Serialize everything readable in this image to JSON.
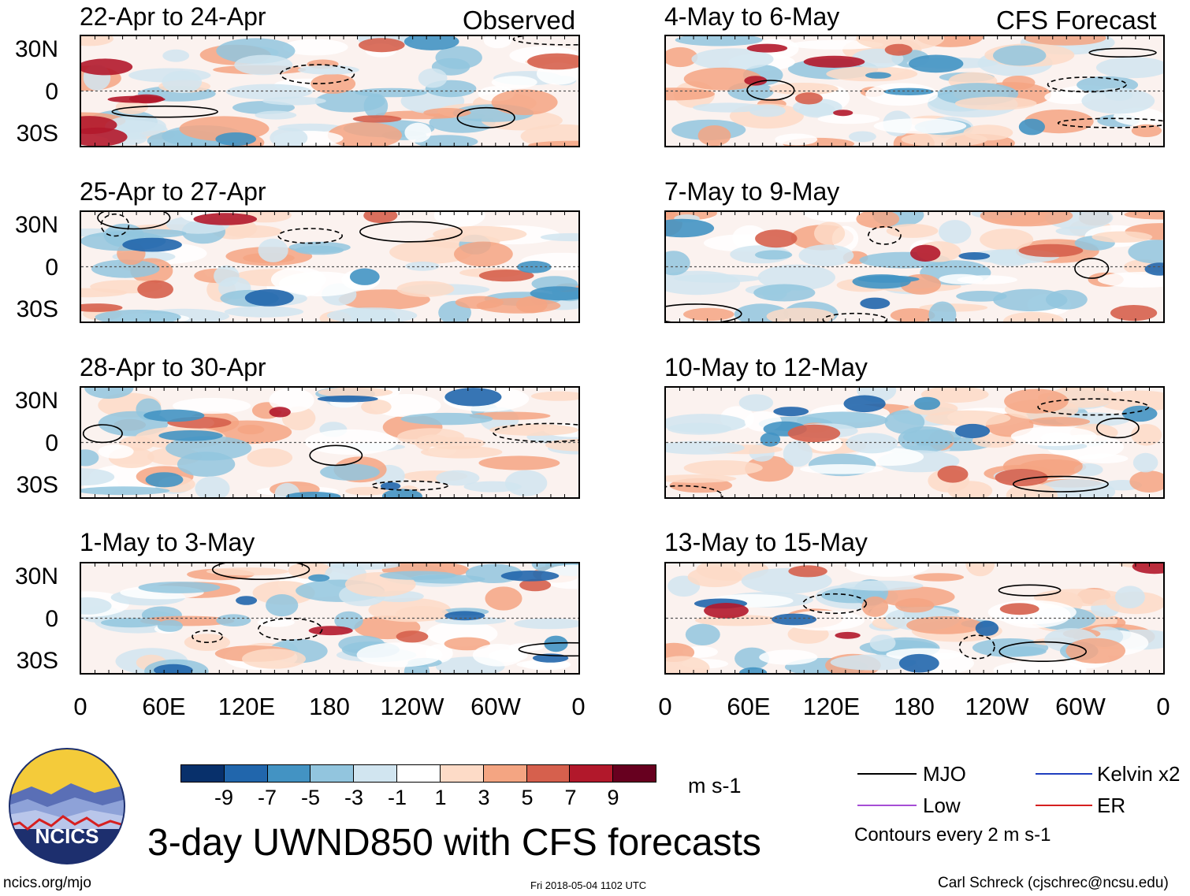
{
  "header": {
    "observed_label": "Observed",
    "forecast_label": "CFS Forecast"
  },
  "panels": {
    "observed": [
      {
        "title": "22-Apr to 24-Apr"
      },
      {
        "title": "25-Apr to 27-Apr"
      },
      {
        "title": "28-Apr to 30-Apr"
      },
      {
        "title": "1-May to 3-May"
      }
    ],
    "forecast": [
      {
        "title": "4-May to 6-May"
      },
      {
        "title": "7-May to 9-May"
      },
      {
        "title": "10-May to 12-May"
      },
      {
        "title": "13-May to 15-May"
      }
    ]
  },
  "axes": {
    "lat_labels": [
      "30N",
      "0",
      "30S"
    ],
    "lon_labels": [
      "0",
      "60E",
      "120E",
      "180",
      "120W",
      "60W",
      "0"
    ]
  },
  "colorbar": {
    "unit": "m s-1",
    "tick_labels": [
      "-9",
      "-7",
      "-5",
      "-3",
      "-1",
      "1",
      "3",
      "5",
      "7",
      "9"
    ],
    "colors": [
      "#08306b",
      "#2166ac",
      "#4393c3",
      "#92c5de",
      "#d1e5f0",
      "#ffffff",
      "#fddbc7",
      "#f4a582",
      "#d6604d",
      "#b2182b",
      "#67001f"
    ]
  },
  "legend": {
    "items": [
      {
        "label": "MJO",
        "color": "#000000"
      },
      {
        "label": "Kelvin x2",
        "color": "#1f3fbf"
      },
      {
        "label": "Low",
        "color": "#a64dd6"
      },
      {
        "label": "ER",
        "color": "#d62020"
      }
    ],
    "contour_note": "Contours every 2 m s-1"
  },
  "main_title": "3-day UWND850 with CFS forecasts",
  "logo_text": "NCICS",
  "footer": {
    "left": "ncics.org/mjo",
    "center": "Fri 2018-05-04 1102 UTC",
    "right": "Carl Schreck (cjschrec@ncsu.edu)"
  }
}
